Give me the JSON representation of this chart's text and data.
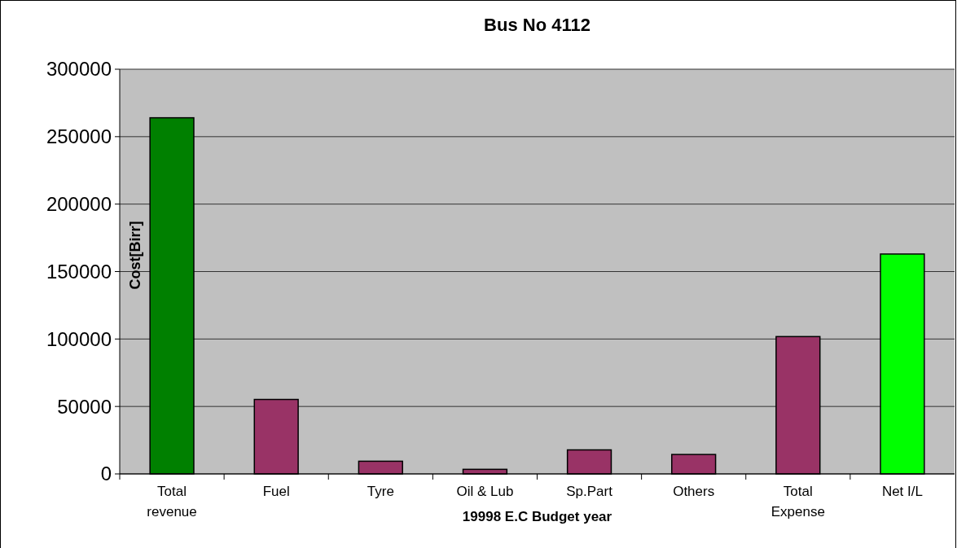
{
  "chart_data": {
    "type": "bar",
    "title": "Bus No 4112",
    "xlabel": "19998 E.C Budget year",
    "ylabel": "Cost[Birr]",
    "categories": [
      "Total revenue",
      "Fuel",
      "Tyre",
      "Oil & Lub",
      "Sp.Part",
      "Others",
      "Total Expense",
      "Net I/L"
    ],
    "values": [
      264000,
      55200,
      9400,
      3400,
      17800,
      14400,
      101800,
      163000
    ],
    "colors": [
      "#008000",
      "#993366",
      "#993366",
      "#993366",
      "#993366",
      "#993366",
      "#993366",
      "#00ff00"
    ],
    "ylim": [
      0,
      300000
    ],
    "yticks": [
      0,
      50000,
      100000,
      150000,
      200000,
      250000,
      300000
    ],
    "grid": "y"
  }
}
